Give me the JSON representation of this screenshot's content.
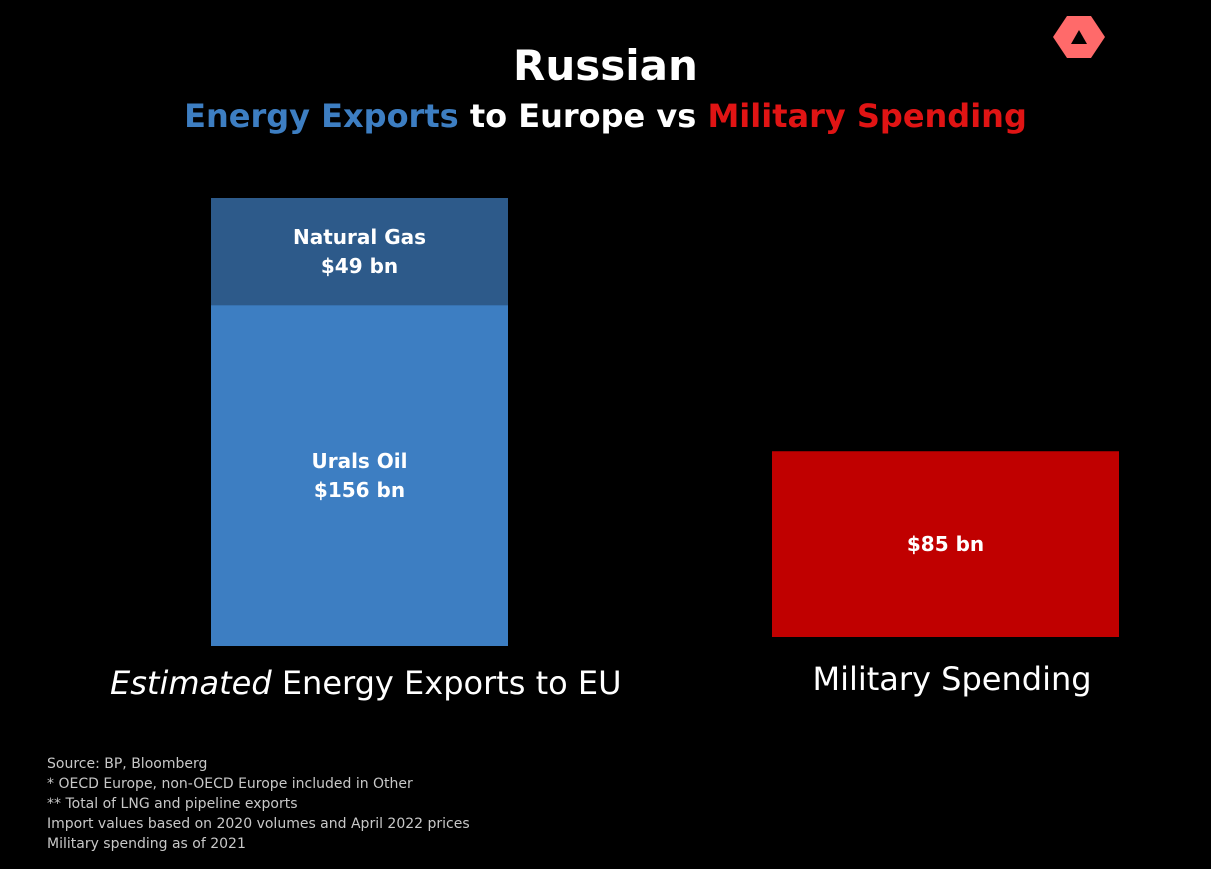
{
  "colors": {
    "background": "#000000",
    "natural_gas": "#2d5a8a",
    "urals_oil": "#3d7ec2",
    "military": "#c00000",
    "accent_blue": "#3d7ec2",
    "accent_red": "#e01414",
    "logo": "#ff6a6a"
  },
  "header": {
    "logo_icon": "triangle-logo-icon",
    "title": "Russian",
    "subtitle_part1": "Energy Exports",
    "subtitle_part2": " to Europe vs ",
    "subtitle_part3": "Military Spending"
  },
  "chart_data": {
    "type": "bar",
    "stacked": true,
    "unit": "$ bn",
    "categories": [
      "Estimated Energy Exports to EU",
      "Military Spending"
    ],
    "category_labels": [
      {
        "emphasis": "Estimated",
        "rest": " Energy Exports to EU"
      },
      {
        "emphasis": "",
        "rest": "Military Spending"
      }
    ],
    "series": [
      {
        "name": "Urals Oil",
        "values": [
          156,
          null
        ],
        "label": "$156 bn",
        "color": "#3d7ec2"
      },
      {
        "name": "Natural Gas",
        "values": [
          49,
          null
        ],
        "label": "$49 bn",
        "color": "#2d5a8a"
      },
      {
        "name": "",
        "values": [
          null,
          85
        ],
        "label": "$85 bn",
        "color": "#c00000"
      }
    ],
    "ylim": [
      0,
      205
    ],
    "grid": false,
    "legend": "none"
  },
  "footnotes": [
    "Source: BP, Bloomberg",
    "* OECD Europe, non-OECD Europe included in Other",
    "** Total of LNG and pipeline exports",
    "Import values based on 2020 volumes and April 2022 prices",
    "Military spending as of 2021"
  ]
}
